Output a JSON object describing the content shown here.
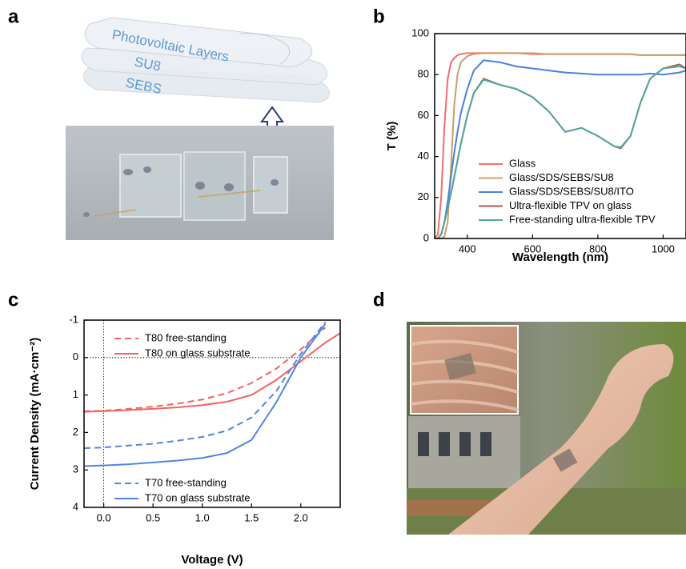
{
  "panel_labels": [
    "a",
    "b",
    "c",
    "d"
  ],
  "layers": [
    "Photovoltaic Layers",
    "SU8",
    "SEBS"
  ],
  "chart_data": [
    {
      "type": "line",
      "x_label": "Wavelength (nm)",
      "y_label": "T (%)",
      "x": [
        300,
        310,
        320,
        330,
        340,
        350,
        360,
        370,
        380,
        400,
        420,
        450,
        500,
        550,
        600,
        650,
        700,
        750,
        800,
        850,
        870,
        900,
        930,
        960,
        1000,
        1050,
        1070
      ],
      "xlim": [
        300,
        1070
      ],
      "ylim": [
        0,
        100
      ],
      "xticks": [
        400,
        600,
        800,
        1000
      ],
      "yticks": [
        0,
        20,
        40,
        60,
        80,
        100
      ],
      "legend": "lower right",
      "series": [
        {
          "name": "Glass",
          "color": "#f26d6d",
          "values": [
            0,
            2,
            20,
            55,
            78,
            86,
            88,
            89.5,
            90,
            90.5,
            90.5,
            90.5,
            90.5,
            90.5,
            90,
            90,
            90,
            90,
            90,
            90,
            90,
            90,
            89.5,
            89.5,
            89.5,
            89.5,
            89.5
          ]
        },
        {
          "name": "Glass/SDS/SEBS/SU8",
          "color": "#c9a06a",
          "values": [
            0,
            0,
            0,
            1,
            8,
            35,
            65,
            80,
            86,
            89,
            90,
            90.5,
            90.5,
            90.5,
            90.5,
            90,
            90,
            90,
            90,
            90,
            90,
            90,
            89.5,
            89.5,
            89.5,
            89.5,
            89.5
          ]
        },
        {
          "name": "Glass/SDS/SEBS/SU8/ITO",
          "color": "#4d7fdc",
          "values": [
            0,
            0,
            2,
            8,
            18,
            30,
            42,
            52,
            61,
            73,
            82,
            87,
            86,
            84,
            83,
            82,
            81,
            80.5,
            80,
            80,
            80,
            80,
            80,
            80.5,
            80,
            81,
            82
          ]
        },
        {
          "name": "Ultra-flexible TPV on glass",
          "color": "#a85a50",
          "values": [
            0,
            0,
            2,
            8,
            15,
            22,
            30,
            38,
            46,
            60,
            71,
            78,
            75,
            73,
            69,
            62,
            52,
            54,
            50,
            45,
            44,
            50,
            66,
            78,
            83,
            85,
            83
          ]
        },
        {
          "name": "Free-standing ultra-flexible TPV",
          "color": "#4ea89e",
          "values": [
            0,
            0,
            2,
            8,
            15,
            22,
            30,
            38,
            46,
            60,
            71,
            77.5,
            75,
            73,
            69,
            62,
            52,
            54,
            50,
            45,
            44.5,
            50,
            66,
            78,
            83,
            84,
            83
          ]
        }
      ]
    },
    {
      "type": "line",
      "x_label": "Voltage (V)",
      "y_label": "Current Density (mA·cm⁻²)",
      "x": [
        -0.2,
        0,
        0.25,
        0.5,
        0.75,
        1.0,
        1.25,
        1.5,
        1.75,
        2.0,
        2.25,
        2.4
      ],
      "xlim": [
        -0.2,
        2.4
      ],
      "ylim": [
        4,
        -1
      ],
      "xticks": [
        {
          "value": 0,
          "label": "0.0"
        },
        0.5,
        {
          "value": 1,
          "label": "1.0"
        },
        1.5,
        {
          "value": 2,
          "label": "2.0"
        }
      ],
      "yticks": [
        -1,
        0,
        1,
        2,
        3,
        4
      ],
      "zero_lines": true,
      "series": [
        {
          "name": "T80 free-standing",
          "color": "#f4635f",
          "line_style": "dashed",
          "legend": "upper left",
          "values": [
            1.43,
            1.42,
            1.37,
            1.31,
            1.23,
            1.12,
            0.95,
            0.68,
            0.3,
            -0.22,
            -0.8,
            null
          ]
        },
        {
          "name": "T80 on glass substrate",
          "color": "#f4635f",
          "line_style": "solid",
          "legend": "upper left",
          "values": [
            1.45,
            1.43,
            1.4,
            1.37,
            1.33,
            1.27,
            1.18,
            1.0,
            0.6,
            0.1,
            -0.4,
            -0.65
          ]
        },
        {
          "name": "T70 free-standing",
          "color": "#4f86e0",
          "line_style": "dashed",
          "legend": "lower left",
          "values": [
            2.42,
            2.4,
            2.35,
            2.3,
            2.22,
            2.12,
            1.95,
            1.6,
            0.9,
            -0.1,
            -0.95,
            null
          ]
        },
        {
          "name": "T70 on glass substrate",
          "color": "#4f86e0",
          "line_style": "solid",
          "legend": "lower left",
          "values": [
            2.9,
            2.88,
            2.85,
            2.8,
            2.75,
            2.68,
            2.55,
            2.2,
            1.2,
            0.0,
            -0.9,
            null
          ]
        }
      ]
    }
  ]
}
